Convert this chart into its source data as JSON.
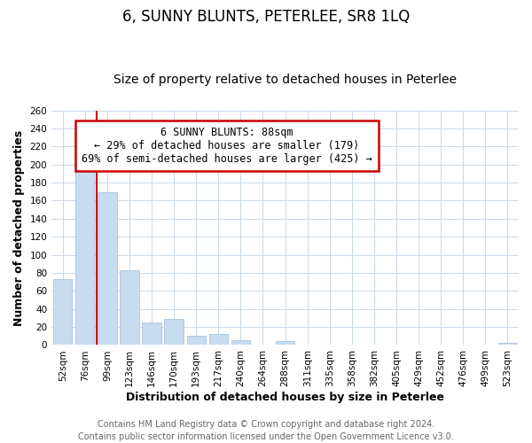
{
  "title": "6, SUNNY BLUNTS, PETERLEE, SR8 1LQ",
  "subtitle": "Size of property relative to detached houses in Peterlee",
  "xlabel": "Distribution of detached houses by size in Peterlee",
  "ylabel": "Number of detached properties",
  "bar_labels": [
    "52sqm",
    "76sqm",
    "99sqm",
    "123sqm",
    "146sqm",
    "170sqm",
    "193sqm",
    "217sqm",
    "240sqm",
    "264sqm",
    "288sqm",
    "311sqm",
    "335sqm",
    "358sqm",
    "382sqm",
    "405sqm",
    "429sqm",
    "452sqm",
    "476sqm",
    "499sqm",
    "523sqm"
  ],
  "bar_values": [
    73,
    205,
    169,
    83,
    25,
    29,
    10,
    12,
    5,
    0,
    4,
    0,
    0,
    0,
    0,
    0,
    0,
    0,
    0,
    0,
    2
  ],
  "bar_color": "#c8dcf0",
  "bar_edge_color": "#a8c4e0",
  "ylim": [
    0,
    260
  ],
  "yticks": [
    0,
    20,
    40,
    60,
    80,
    100,
    120,
    140,
    160,
    180,
    200,
    220,
    240,
    260
  ],
  "vline_color": "#cc0000",
  "annotation_title": "6 SUNNY BLUNTS: 88sqm",
  "annotation_line1": "← 29% of detached houses are smaller (179)",
  "annotation_line2": "69% of semi-detached houses are larger (425) →",
  "footer_line1": "Contains HM Land Registry data © Crown copyright and database right 2024.",
  "footer_line2": "Contains public sector information licensed under the Open Government Licence v3.0.",
  "background_color": "#ffffff",
  "grid_color": "#c8d8e8",
  "title_fontsize": 12,
  "subtitle_fontsize": 10,
  "axis_label_fontsize": 9,
  "tick_fontsize": 7.5,
  "annotation_fontsize": 8.5,
  "footer_fontsize": 7
}
